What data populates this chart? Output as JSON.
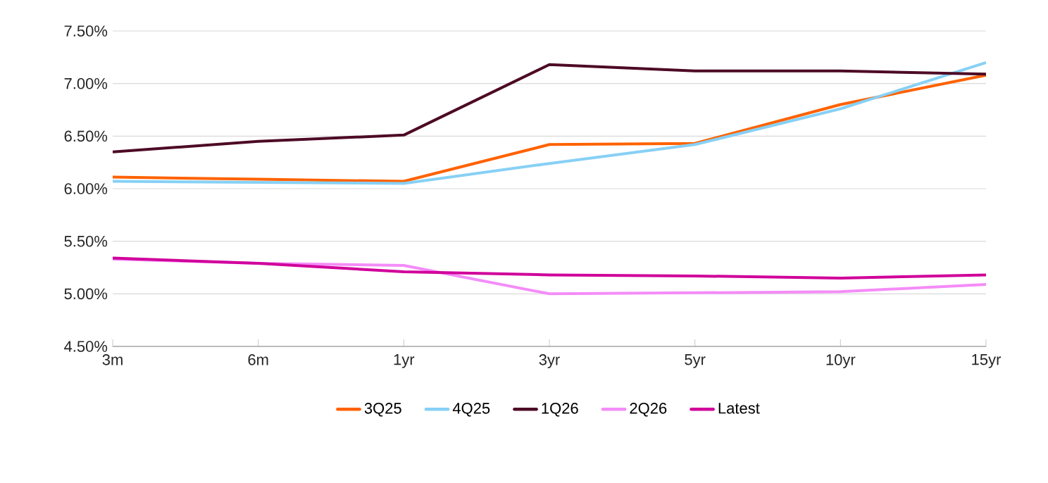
{
  "chart_data": {
    "type": "line",
    "categories": [
      "3m",
      "6m",
      "1yr",
      "3yr",
      "5yr",
      "10yr",
      "15yr"
    ],
    "series": [
      {
        "name": "3Q25",
        "color": "#ff6200",
        "values": [
          6.11,
          6.09,
          6.07,
          6.42,
          6.43,
          6.8,
          7.08
        ]
      },
      {
        "name": "4Q25",
        "color": "#87d0f5",
        "values": [
          6.07,
          6.06,
          6.05,
          6.24,
          6.42,
          6.76,
          7.2
        ]
      },
      {
        "name": "1Q26",
        "color": "#4d0a25",
        "values": [
          6.35,
          6.45,
          6.51,
          7.18,
          7.12,
          7.12,
          7.09
        ]
      },
      {
        "name": "2Q26",
        "color": "#f48cf8",
        "values": [
          5.33,
          5.29,
          5.27,
          5.0,
          5.01,
          5.02,
          5.09
        ]
      },
      {
        "name": "Latest",
        "color": "#d0009a",
        "values": [
          5.34,
          5.29,
          5.21,
          5.18,
          5.17,
          5.15,
          5.18
        ]
      }
    ],
    "ylim": [
      4.5,
      7.5
    ],
    "yticks": [
      {
        "value": 4.5,
        "label": "4.50%"
      },
      {
        "value": 5.0,
        "label": "5.00%"
      },
      {
        "value": 5.5,
        "label": "5.50%"
      },
      {
        "value": 6.0,
        "label": "6.00%"
      },
      {
        "value": 6.5,
        "label": "6.50%"
      },
      {
        "value": 7.0,
        "label": "7.00%"
      },
      {
        "value": 7.5,
        "label": "7.50%"
      }
    ],
    "grid": "y",
    "legend": "bottom",
    "marker": "none",
    "line_style": "solid"
  }
}
